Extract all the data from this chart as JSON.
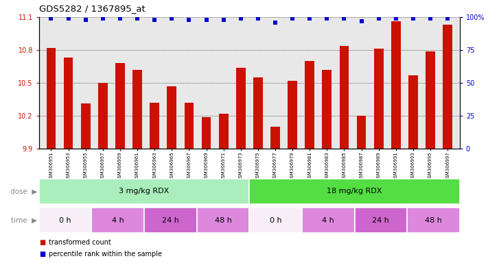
{
  "title": "GDS5282 / 1367895_at",
  "samples": [
    "GSM306951",
    "GSM306953",
    "GSM306955",
    "GSM306957",
    "GSM306959",
    "GSM306961",
    "GSM306963",
    "GSM306965",
    "GSM306967",
    "GSM306969",
    "GSM306971",
    "GSM306973",
    "GSM306975",
    "GSM306977",
    "GSM306979",
    "GSM306981",
    "GSM306983",
    "GSM306985",
    "GSM306987",
    "GSM306989",
    "GSM306991",
    "GSM306993",
    "GSM306995",
    "GSM306997"
  ],
  "bar_values": [
    10.82,
    10.73,
    10.31,
    10.5,
    10.68,
    10.62,
    10.32,
    10.47,
    10.32,
    10.19,
    10.22,
    10.64,
    10.55,
    10.1,
    10.52,
    10.7,
    10.62,
    10.84,
    10.2,
    10.81,
    11.06,
    10.57,
    10.79,
    11.03
  ],
  "percentile_values": [
    99,
    99,
    98,
    99,
    99,
    99,
    98,
    99,
    98,
    98,
    98,
    99,
    99,
    96,
    99,
    99,
    99,
    99,
    97,
    99,
    99,
    99,
    99,
    99
  ],
  "ylim_left": [
    9.9,
    11.1
  ],
  "ylim_right": [
    0,
    100
  ],
  "bar_color": "#cc1100",
  "dot_color": "#0000cc",
  "bg_color": "#e8e8e8",
  "dose_groups": [
    {
      "label": "3 mg/kg RDX",
      "start": 0,
      "end": 12,
      "color": "#aaeebb"
    },
    {
      "label": "18 mg/kg RDX",
      "start": 12,
      "end": 24,
      "color": "#55dd44"
    }
  ],
  "time_groups": [
    {
      "label": "0 h",
      "start": 0,
      "end": 3,
      "color": "#f8eef8"
    },
    {
      "label": "4 h",
      "start": 3,
      "end": 6,
      "color": "#dd88dd"
    },
    {
      "label": "24 h",
      "start": 6,
      "end": 9,
      "color": "#cc66cc"
    },
    {
      "label": "48 h",
      "start": 9,
      "end": 12,
      "color": "#dd88dd"
    },
    {
      "label": "0 h",
      "start": 12,
      "end": 15,
      "color": "#f8eef8"
    },
    {
      "label": "4 h",
      "start": 15,
      "end": 18,
      "color": "#dd88dd"
    },
    {
      "label": "24 h",
      "start": 18,
      "end": 21,
      "color": "#cc66cc"
    },
    {
      "label": "48 h",
      "start": 21,
      "end": 24,
      "color": "#dd88dd"
    }
  ],
  "legend_items": [
    {
      "label": "transformed count",
      "color": "#cc1100"
    },
    {
      "label": "percentile rank within the sample",
      "color": "#0000cc"
    }
  ],
  "yticks_left": [
    9.9,
    10.2,
    10.5,
    10.8,
    11.1
  ],
  "yticks_right": [
    0,
    25,
    50,
    75,
    100
  ]
}
